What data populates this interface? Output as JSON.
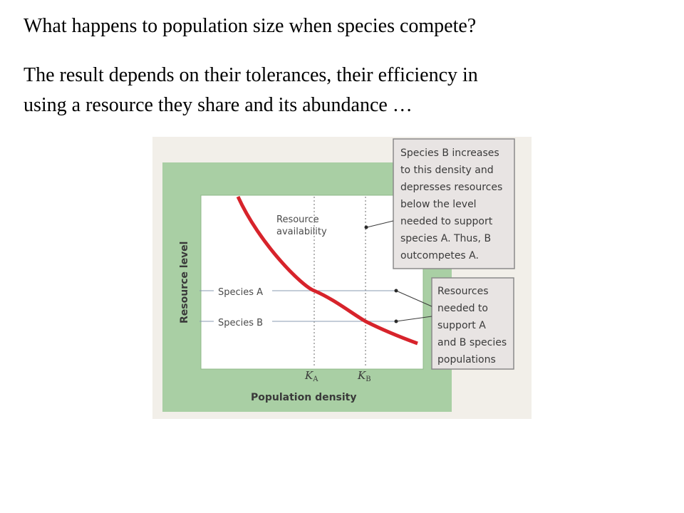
{
  "slide": {
    "question": "What happens to population size when species compete?",
    "paragraph_lines": [
      "The result depends on their tolerances, their efficiency in",
      "using a resource they share and its abundance …"
    ]
  },
  "diagram": {
    "y_axis_label": "Resource level",
    "x_axis_label": "Population density",
    "curve_label_lines": [
      "Resource",
      "availability"
    ],
    "species_a_label": "Species A",
    "species_b_label": "Species B",
    "k_a": {
      "letter": "K",
      "subscript": "A"
    },
    "k_b": {
      "letter": "K",
      "subscript": "B"
    },
    "callout_top_lines": [
      "Species B increases",
      "to this density and",
      "depresses resources",
      "below the level",
      "needed to support",
      "species A.  Thus, B",
      "outcompetes A."
    ],
    "callout_bottom_lines": [
      "Resources",
      "needed to",
      "support A",
      "and B species",
      "populations"
    ],
    "colors": {
      "frame_green": "#a9cfa4",
      "plot_background": "#ffffff",
      "curve_red": "#d7232b",
      "callout_fill": "#e8e4e3",
      "dotted_line": "#6b6b6b"
    }
  }
}
